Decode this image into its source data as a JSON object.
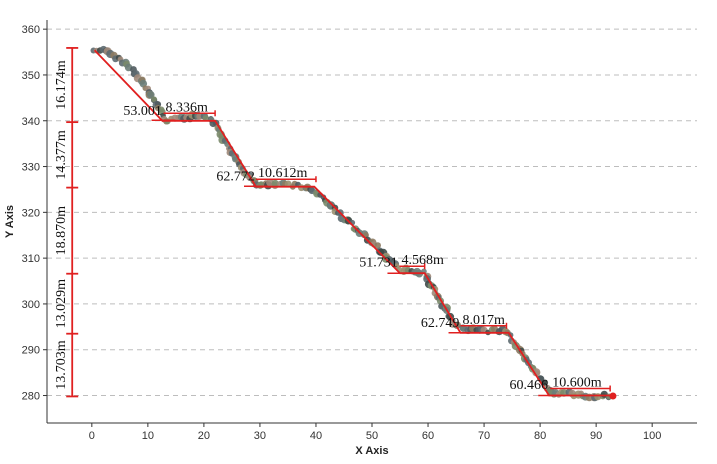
{
  "chart_data": {
    "type": "scatter",
    "title": "",
    "xlabel": "X Axis",
    "ylabel": "Y Axis",
    "xlim": [
      -8,
      108
    ],
    "ylim": [
      274,
      362
    ],
    "x_ticks": [
      0,
      10,
      20,
      30,
      40,
      50,
      60,
      70,
      80,
      90,
      100
    ],
    "y_ticks": [
      280,
      290,
      300,
      310,
      320,
      330,
      340,
      350,
      360
    ],
    "grid": "horizontal dashed",
    "point_colors": [
      "#7a8a6a",
      "#5d6a70",
      "#8c7a60",
      "#4f5a5e",
      "#9a8f70",
      "#6c7d78",
      "#3f4a48",
      "#a08a7a"
    ],
    "highlight_color": "#e02020",
    "profile_points": [
      {
        "x": 0.3,
        "y": 355.4
      },
      {
        "x": 2,
        "y": 355.2
      },
      {
        "x": 4,
        "y": 354.3
      },
      {
        "x": 6,
        "y": 352.6
      },
      {
        "x": 8,
        "y": 350.0
      },
      {
        "x": 10,
        "y": 347.0
      },
      {
        "x": 11.8,
        "y": 343.2
      },
      {
        "x": 13.2,
        "y": 340.0
      },
      {
        "x": 16,
        "y": 340.8
      },
      {
        "x": 19,
        "y": 341.0
      },
      {
        "x": 21.5,
        "y": 340.3
      },
      {
        "x": 23.5,
        "y": 336.0
      },
      {
        "x": 26.5,
        "y": 330.0
      },
      {
        "x": 29.5,
        "y": 326.0
      },
      {
        "x": 33,
        "y": 326.1
      },
      {
        "x": 37,
        "y": 325.9
      },
      {
        "x": 40,
        "y": 324.5
      },
      {
        "x": 44,
        "y": 320.0
      },
      {
        "x": 48,
        "y": 315.5
      },
      {
        "x": 52,
        "y": 311.0
      },
      {
        "x": 55,
        "y": 307.5
      },
      {
        "x": 58,
        "y": 307.2
      },
      {
        "x": 59.5,
        "y": 306.4
      },
      {
        "x": 62,
        "y": 301.0
      },
      {
        "x": 64.5,
        "y": 296.0
      },
      {
        "x": 66.5,
        "y": 294.5
      },
      {
        "x": 70,
        "y": 294.2
      },
      {
        "x": 74,
        "y": 294.0
      },
      {
        "x": 77,
        "y": 289.0
      },
      {
        "x": 79.5,
        "y": 284.5
      },
      {
        "x": 82,
        "y": 280.8
      },
      {
        "x": 86,
        "y": 280.2
      },
      {
        "x": 90,
        "y": 279.8
      },
      {
        "x": 93,
        "y": 279.9
      }
    ],
    "fit_line": [
      {
        "x": 0.5,
        "y": 355.4
      },
      {
        "x": 12.6,
        "y": 340.0
      },
      {
        "x": 22.0,
        "y": 340.0
      },
      {
        "x": 29.3,
        "y": 325.6
      },
      {
        "x": 39.7,
        "y": 325.6
      },
      {
        "x": 55.0,
        "y": 306.7
      },
      {
        "x": 59.4,
        "y": 306.7
      },
      {
        "x": 65.8,
        "y": 293.7
      },
      {
        "x": 74.4,
        "y": 293.7
      },
      {
        "x": 81.6,
        "y": 280.0
      },
      {
        "x": 93.0,
        "y": 280.0
      }
    ],
    "left_dimension": {
      "x": -3.5,
      "ticks": [
        355.9,
        339.7,
        325.4,
        306.6,
        293.5,
        279.8
      ],
      "labels": [
        "16.174m",
        "14.377m",
        "18.870m",
        "13.029m",
        "13.703m"
      ]
    },
    "annotations": {
      "angles": [
        {
          "text": "53.001",
          "x": 12.5,
          "y": 341.3
        },
        {
          "text": "62.772",
          "x": 29.1,
          "y": 327.0
        },
        {
          "text": "51.731",
          "x": 54.6,
          "y": 308.2
        },
        {
          "text": "62.749",
          "x": 65.6,
          "y": 295.0
        },
        {
          "text": "60.466",
          "x": 81.4,
          "y": 281.4
        }
      ],
      "lengths": [
        {
          "text": "8.336m",
          "x": 12.5,
          "y": 340.1,
          "x1": 12.8,
          "x2": 22.0
        },
        {
          "text": "10.612m",
          "x": 29.3,
          "y": 325.7,
          "x1": 29.3,
          "x2": 40.0
        },
        {
          "text": "4.568m",
          "x": 55.0,
          "y": 306.7,
          "x1": 54.9,
          "x2": 59.4
        },
        {
          "text": "8.017m",
          "x": 66.2,
          "y": 293.7,
          "x1": 65.8,
          "x2": 74.0
        },
        {
          "text": "10.600m",
          "x": 81.6,
          "y": 280.0,
          "x1": 81.8,
          "x2": 92.5
        }
      ]
    }
  }
}
